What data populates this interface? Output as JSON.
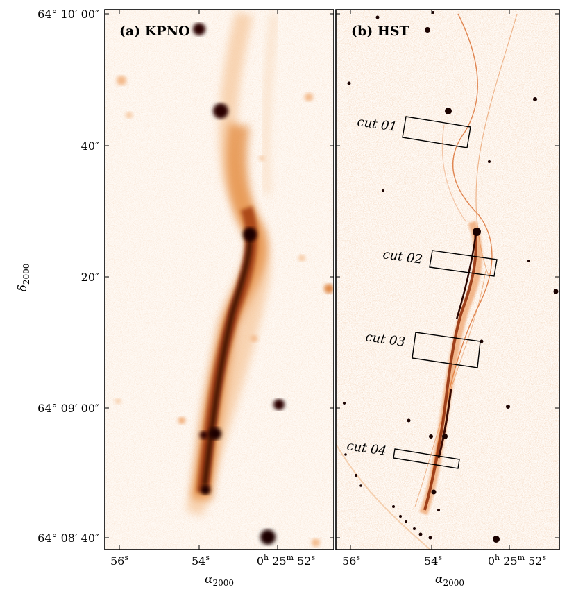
{
  "figure": {
    "panels": [
      {
        "title": "(a) KPNO",
        "x_ticks": [
          {
            "base": "56",
            "sup": "s"
          },
          {
            "base": "54",
            "sup": "s"
          },
          {
            "base": "0",
            "sup": "h",
            "mid": " 25",
            "sup2": "m",
            "tail": " 52",
            "sup3": "s"
          }
        ],
        "y_ticks": [
          {
            "text": "64° 10′ 00″"
          },
          {
            "text": "40″"
          },
          {
            "text": "20″"
          },
          {
            "text": "64° 09′ 00″"
          },
          {
            "text": "64° 08′ 40″"
          }
        ],
        "xlabel": "α2000",
        "ylabel": "δ2000"
      },
      {
        "title": "(b) HST",
        "x_ticks": [
          {
            "base": "56",
            "sup": "s"
          },
          {
            "base": "54",
            "sup": "s"
          },
          {
            "base": "0",
            "sup": "h",
            "mid": " 25",
            "sup2": "m",
            "tail": " 52",
            "sup3": "s"
          }
        ],
        "xlabel": "α2000",
        "cuts": [
          "cut 01",
          "cut 02",
          "cut 03",
          "cut 04"
        ]
      }
    ],
    "colormap": [
      "#ffffff",
      "#fbe6d2",
      "#f0a35a",
      "#c6561b",
      "#6a1a06",
      "#1a0200"
    ]
  }
}
